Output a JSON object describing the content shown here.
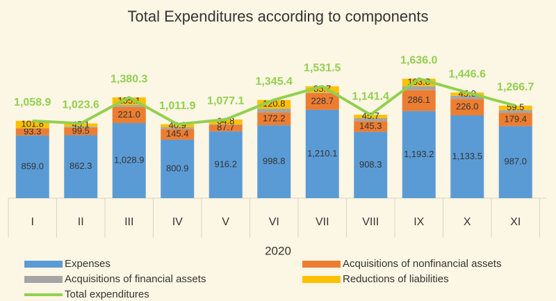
{
  "chart_data": {
    "type": "bar",
    "stacked": true,
    "title": "Total Expenditures according to components",
    "x_label": "2020",
    "categories": [
      "I",
      "II",
      "III",
      "IV",
      "V",
      "VI",
      "VII",
      "VIII",
      "IX",
      "X",
      "XI"
    ],
    "series": [
      {
        "name": "Expenses",
        "color": "#5b9bd5",
        "values": [
          859.0,
          862.3,
          1028.9,
          800.9,
          916.2,
          998.8,
          1210.1,
          908.3,
          1193.2,
          1133.5,
          987.0
        ],
        "value_labels": [
          "859.0",
          "862.3",
          "1,028.9",
          "800.9",
          "916.2",
          "998.8",
          "1,210.1",
          "908.3",
          "1,193.2",
          "1,133.5",
          "987.0"
        ]
      },
      {
        "name": "Acquisitions of nonfinancial assets",
        "color": "#ed7d31",
        "values": [
          93.3,
          99.5,
          221.0,
          145.4,
          87.7,
          172.2,
          228.7,
          145.3,
          286.1,
          226.0,
          179.4
        ],
        "value_labels": [
          "93.3",
          "99.5",
          "221.0",
          "145.4",
          "87.7",
          "172.2",
          "228.7",
          "145.3",
          "286.1",
          "226.0",
          "179.4"
        ]
      },
      {
        "name": "Acquisitions of financial assets",
        "color": "#a5a5a5",
        "values": [
          4.8,
          16.7,
          25.3,
          24.7,
          8.4,
          53.6,
          7.0,
          42.1,
          52.9,
          42.1,
          40.8
        ]
      },
      {
        "name": "Reductions of liabilities",
        "color": "#ffc000",
        "values": [
          101.8,
          45.1,
          105.1,
          40.9,
          64.8,
          120.8,
          85.7,
          45.7,
          103.8,
          45.0,
          59.5
        ],
        "value_labels": [
          "101.8",
          "45.1",
          "105.1",
          "40.9",
          "64.8",
          "120.8",
          "85.7",
          "45.7",
          "103.8",
          "45.0",
          "59.5"
        ]
      },
      {
        "name": "Total expenditures",
        "color": "#92d050",
        "type": "line",
        "values": [
          1058.9,
          1023.6,
          1380.3,
          1011.9,
          1077.1,
          1345.4,
          1531.5,
          1141.4,
          1636.0,
          1446.6,
          1266.7
        ],
        "value_labels": [
          "1,058.9",
          "1,023.6",
          "1,380.3",
          "1,011.9",
          "1,077.1",
          "1,345.4",
          "1,531.5",
          "1,141.4",
          "1,636.0",
          "1,446.6",
          "1,266.7"
        ]
      }
    ]
  }
}
